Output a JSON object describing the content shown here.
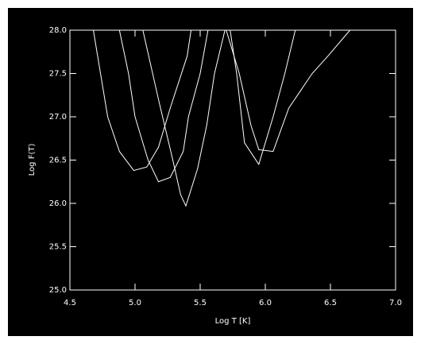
{
  "chart_data": {
    "type": "line",
    "x_label": "Log T [K]",
    "y_label": "Log F(T)",
    "xlim": [
      4.5,
      7.0
    ],
    "ylim": [
      25.0,
      28.0
    ],
    "xticks": [
      4.5,
      {
        "value": 5,
        "label": "5.0"
      },
      5.5,
      {
        "value": 6,
        "label": "6.0"
      },
      6.5,
      {
        "value": 7,
        "label": "7.0"
      }
    ],
    "yticks": [
      {
        "value": 25,
        "label": "25.0"
      },
      25.5,
      {
        "value": 26,
        "label": "26.0"
      },
      26.5,
      {
        "value": 27,
        "label": "27.0"
      },
      27.5,
      {
        "value": 28,
        "label": "28.0"
      }
    ],
    "series": [
      {
        "color": "#ffffff",
        "x": [
          4.68,
          4.79,
          4.88,
          4.99,
          5.09,
          5.18,
          5.27,
          5.4,
          5.43
        ],
        "values": [
          28.0,
          27.0,
          26.6,
          26.38,
          26.42,
          26.65,
          27.1,
          27.7,
          28.0
        ]
      },
      {
        "color": "#ffffff",
        "x": [
          4.88,
          4.95,
          5.0,
          5.1,
          5.18,
          5.27,
          5.37,
          5.41,
          5.5,
          5.56
        ],
        "values": [
          28.0,
          27.5,
          27.0,
          26.5,
          26.25,
          26.3,
          26.6,
          27.0,
          27.5,
          28.0
        ]
      },
      {
        "color": "#ffffff",
        "x": [
          5.06,
          5.18,
          5.29,
          5.35,
          5.39,
          5.48,
          5.55,
          5.61,
          5.69
        ],
        "values": [
          28.0,
          27.2,
          26.5,
          26.1,
          25.97,
          26.4,
          26.9,
          27.5,
          28.0
        ]
      },
      {
        "color": "#ffffff",
        "x": [
          5.73,
          5.78,
          5.84,
          5.95,
          6.06,
          6.15,
          6.23
        ],
        "values": [
          28.0,
          27.5,
          26.7,
          26.45,
          27.0,
          27.5,
          28.0
        ]
      },
      {
        "color": "#ffffff",
        "x": [
          5.7,
          5.8,
          5.89,
          5.95,
          6.06,
          6.18,
          6.36,
          6.48,
          6.65
        ],
        "values": [
          28.0,
          27.5,
          26.9,
          26.62,
          26.6,
          27.1,
          27.5,
          27.7,
          28.0
        ]
      }
    ]
  }
}
